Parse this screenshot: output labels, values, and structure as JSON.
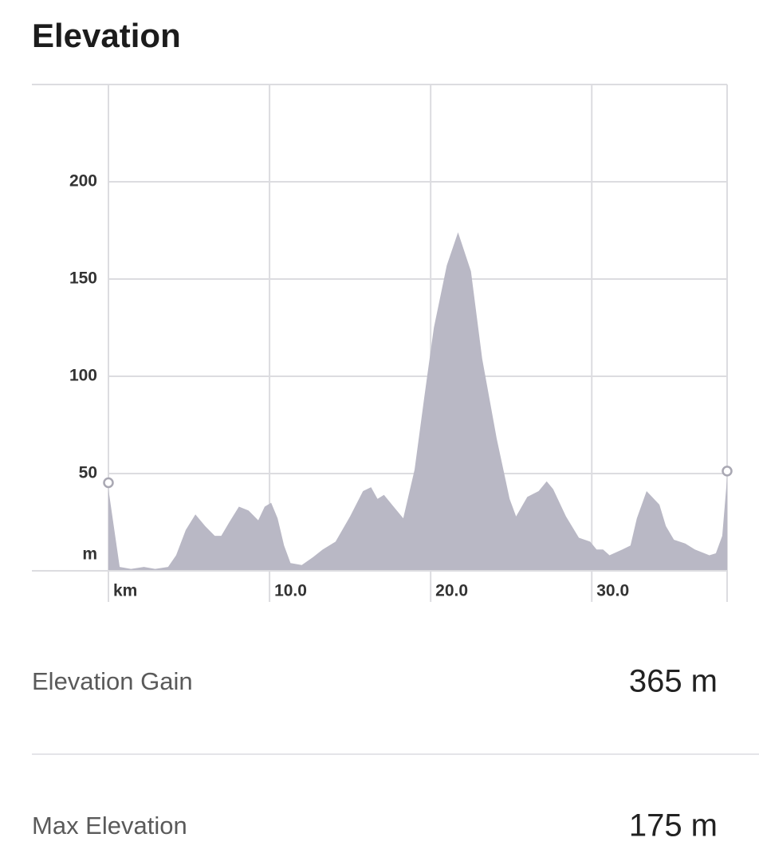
{
  "chart_data": {
    "type": "area",
    "title": "Elevation",
    "color": "#b9b8c5",
    "grid": true,
    "x": [
      0,
      0.7,
      1.4,
      2.2,
      2.9,
      3.7,
      4.2,
      4.8,
      5.4,
      6.0,
      6.6,
      7.0,
      7.5,
      8.1,
      8.7,
      9.3,
      9.7,
      10.1,
      10.5,
      10.9,
      11.3,
      12.0,
      12.7,
      13.3,
      14.1,
      15.0,
      15.8,
      16.3,
      16.7,
      17.1,
      17.7,
      18.3,
      19.0,
      19.6,
      20.2,
      21.0,
      21.7,
      22.5,
      23.2,
      24.1,
      24.9,
      25.3,
      26.0,
      26.7,
      27.2,
      27.6,
      28.4,
      29.2,
      29.9,
      30.3,
      30.7,
      31.1,
      31.9,
      32.4,
      32.8,
      33.4,
      34.2,
      34.6,
      35.1,
      35.8,
      36.4,
      37.3,
      37.7,
      38.1,
      38.4
    ],
    "values": [
      42,
      2,
      1,
      2,
      1,
      2,
      8,
      21,
      29,
      23,
      18,
      18,
      25,
      33,
      31,
      26,
      33,
      35,
      27,
      13,
      4,
      3,
      7,
      11,
      15,
      28,
      41,
      43,
      37,
      39,
      33,
      27,
      52,
      89,
      125,
      157,
      174,
      154,
      109,
      68,
      37,
      28,
      38,
      41,
      46,
      42,
      28,
      17,
      15,
      11,
      11,
      8,
      11,
      13,
      27,
      41,
      34,
      23,
      16,
      14,
      11,
      8,
      9,
      18,
      48
    ],
    "xlim": [
      0,
      38.4
    ],
    "ylim": [
      0,
      250
    ],
    "xticks": [
      {
        "value": 0,
        "label": "km"
      },
      {
        "value": 10,
        "label": "10.0"
      },
      {
        "value": 20,
        "label": "20.0"
      },
      {
        "value": 30,
        "label": "30.0"
      }
    ],
    "yticks": [
      {
        "value": 0,
        "label": "m"
      },
      50,
      100,
      150,
      200
    ]
  },
  "stats": [
    {
      "label": "Elevation Gain",
      "value": "365 m"
    },
    {
      "label": "Max Elevation",
      "value": "175 m"
    }
  ]
}
